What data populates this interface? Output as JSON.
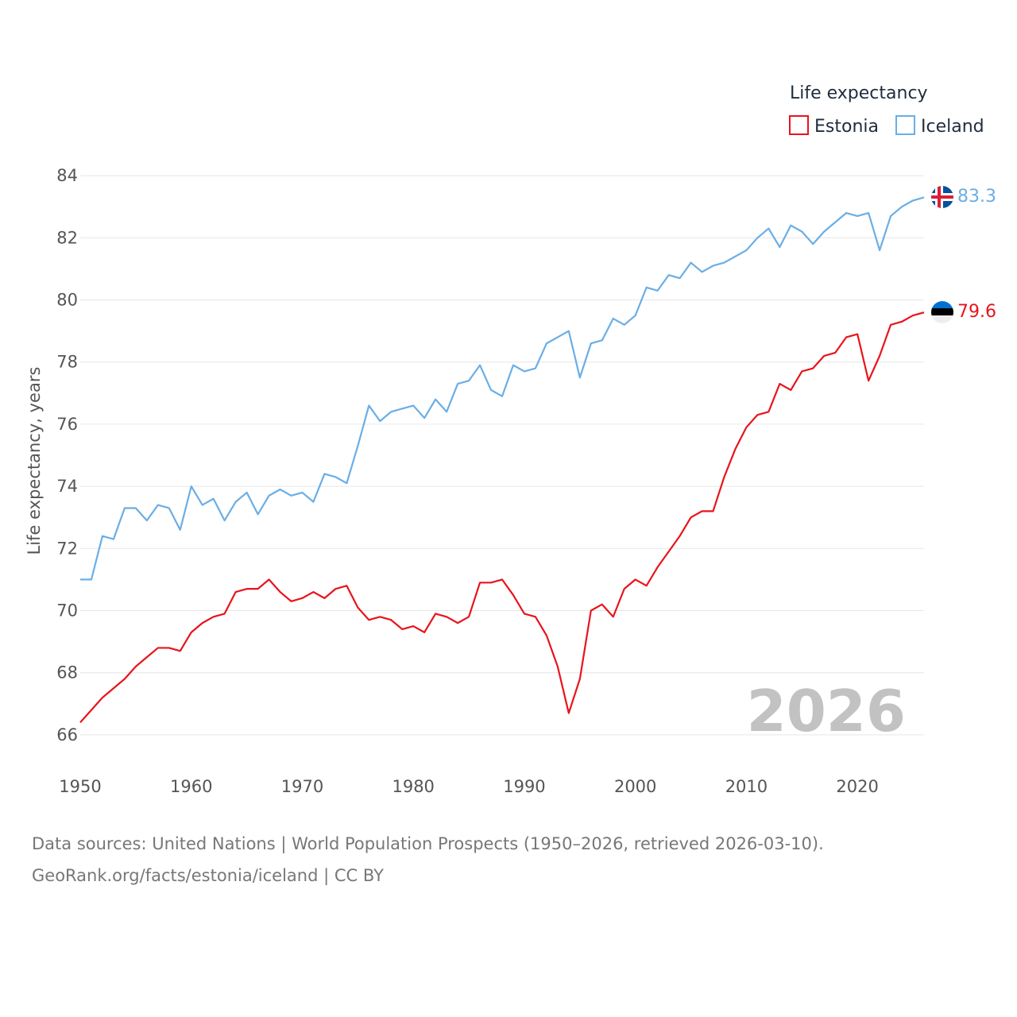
{
  "chart_data": {
    "type": "line",
    "ylabel": "Life expectancy, years",
    "xlabel": "",
    "xlim": [
      1950,
      2026
    ],
    "ylim": [
      65,
      85
    ],
    "y_ticks": [
      66,
      68,
      70,
      72,
      74,
      76,
      78,
      80,
      82,
      84
    ],
    "x_ticks": [
      1950,
      1960,
      1970,
      1980,
      1990,
      2000,
      2010,
      2020
    ],
    "grid": true,
    "legend": {
      "title": "Life expectancy",
      "position": "top-right",
      "entries": [
        "Estonia",
        "Iceland"
      ]
    },
    "year_label": "2026",
    "x": [
      1950,
      1951,
      1952,
      1953,
      1954,
      1955,
      1956,
      1957,
      1958,
      1959,
      1960,
      1961,
      1962,
      1963,
      1964,
      1965,
      1966,
      1967,
      1968,
      1969,
      1970,
      1971,
      1972,
      1973,
      1974,
      1975,
      1976,
      1977,
      1978,
      1979,
      1980,
      1981,
      1982,
      1983,
      1984,
      1985,
      1986,
      1987,
      1988,
      1989,
      1990,
      1991,
      1992,
      1993,
      1994,
      1995,
      1996,
      1997,
      1998,
      1999,
      2000,
      2001,
      2002,
      2003,
      2004,
      2005,
      2006,
      2007,
      2008,
      2009,
      2010,
      2011,
      2012,
      2013,
      2014,
      2015,
      2016,
      2017,
      2018,
      2019,
      2020,
      2021,
      2022,
      2023,
      2024,
      2025,
      2026
    ],
    "series": [
      {
        "name": "Estonia",
        "color": "#e8141b",
        "end_label": "79.6",
        "values": [
          66.4,
          66.8,
          67.2,
          67.5,
          67.8,
          68.2,
          68.5,
          68.8,
          68.8,
          68.7,
          69.3,
          69.6,
          69.8,
          69.9,
          70.6,
          70.7,
          70.7,
          71.0,
          70.6,
          70.3,
          70.4,
          70.6,
          70.4,
          70.7,
          70.8,
          70.1,
          69.7,
          69.8,
          69.7,
          69.4,
          69.5,
          69.3,
          69.9,
          69.8,
          69.6,
          69.8,
          70.9,
          70.9,
          71.0,
          70.5,
          69.9,
          69.8,
          69.2,
          68.2,
          66.7,
          67.8,
          70.0,
          70.2,
          69.8,
          70.7,
          71.0,
          70.8,
          71.4,
          71.9,
          72.4,
          73.0,
          73.2,
          73.2,
          74.3,
          75.2,
          75.9,
          76.3,
          76.4,
          77.3,
          77.1,
          77.7,
          77.8,
          78.2,
          78.3,
          78.8,
          78.9,
          77.4,
          78.2,
          79.2,
          79.3,
          79.5,
          79.6
        ]
      },
      {
        "name": "Iceland",
        "color": "#6aaee6",
        "end_label": "83.3",
        "values": [
          71.0,
          71.0,
          72.4,
          72.3,
          73.3,
          73.3,
          72.9,
          73.4,
          73.3,
          72.6,
          74.0,
          73.4,
          73.6,
          72.9,
          73.5,
          73.8,
          73.1,
          73.7,
          73.9,
          73.7,
          73.8,
          73.5,
          74.4,
          74.3,
          74.1,
          75.3,
          76.6,
          76.1,
          76.4,
          76.5,
          76.6,
          76.2,
          76.8,
          76.4,
          77.3,
          77.4,
          77.9,
          77.1,
          76.9,
          77.9,
          77.7,
          77.8,
          78.6,
          78.8,
          79.0,
          77.5,
          78.6,
          78.7,
          79.4,
          79.2,
          79.5,
          80.4,
          80.3,
          80.8,
          80.7,
          81.2,
          80.9,
          81.1,
          81.2,
          81.4,
          81.6,
          82.0,
          82.3,
          81.7,
          82.4,
          82.2,
          81.8,
          82.2,
          82.5,
          82.8,
          82.7,
          82.8,
          81.6,
          82.7,
          83.0,
          83.2,
          83.3
        ]
      }
    ]
  },
  "footer": {
    "line1": "Data sources: United Nations | World Population Prospects (1950–2026, retrieved 2026-03-10).",
    "line2": "GeoRank.org/facts/estonia/iceland | CC BY"
  }
}
